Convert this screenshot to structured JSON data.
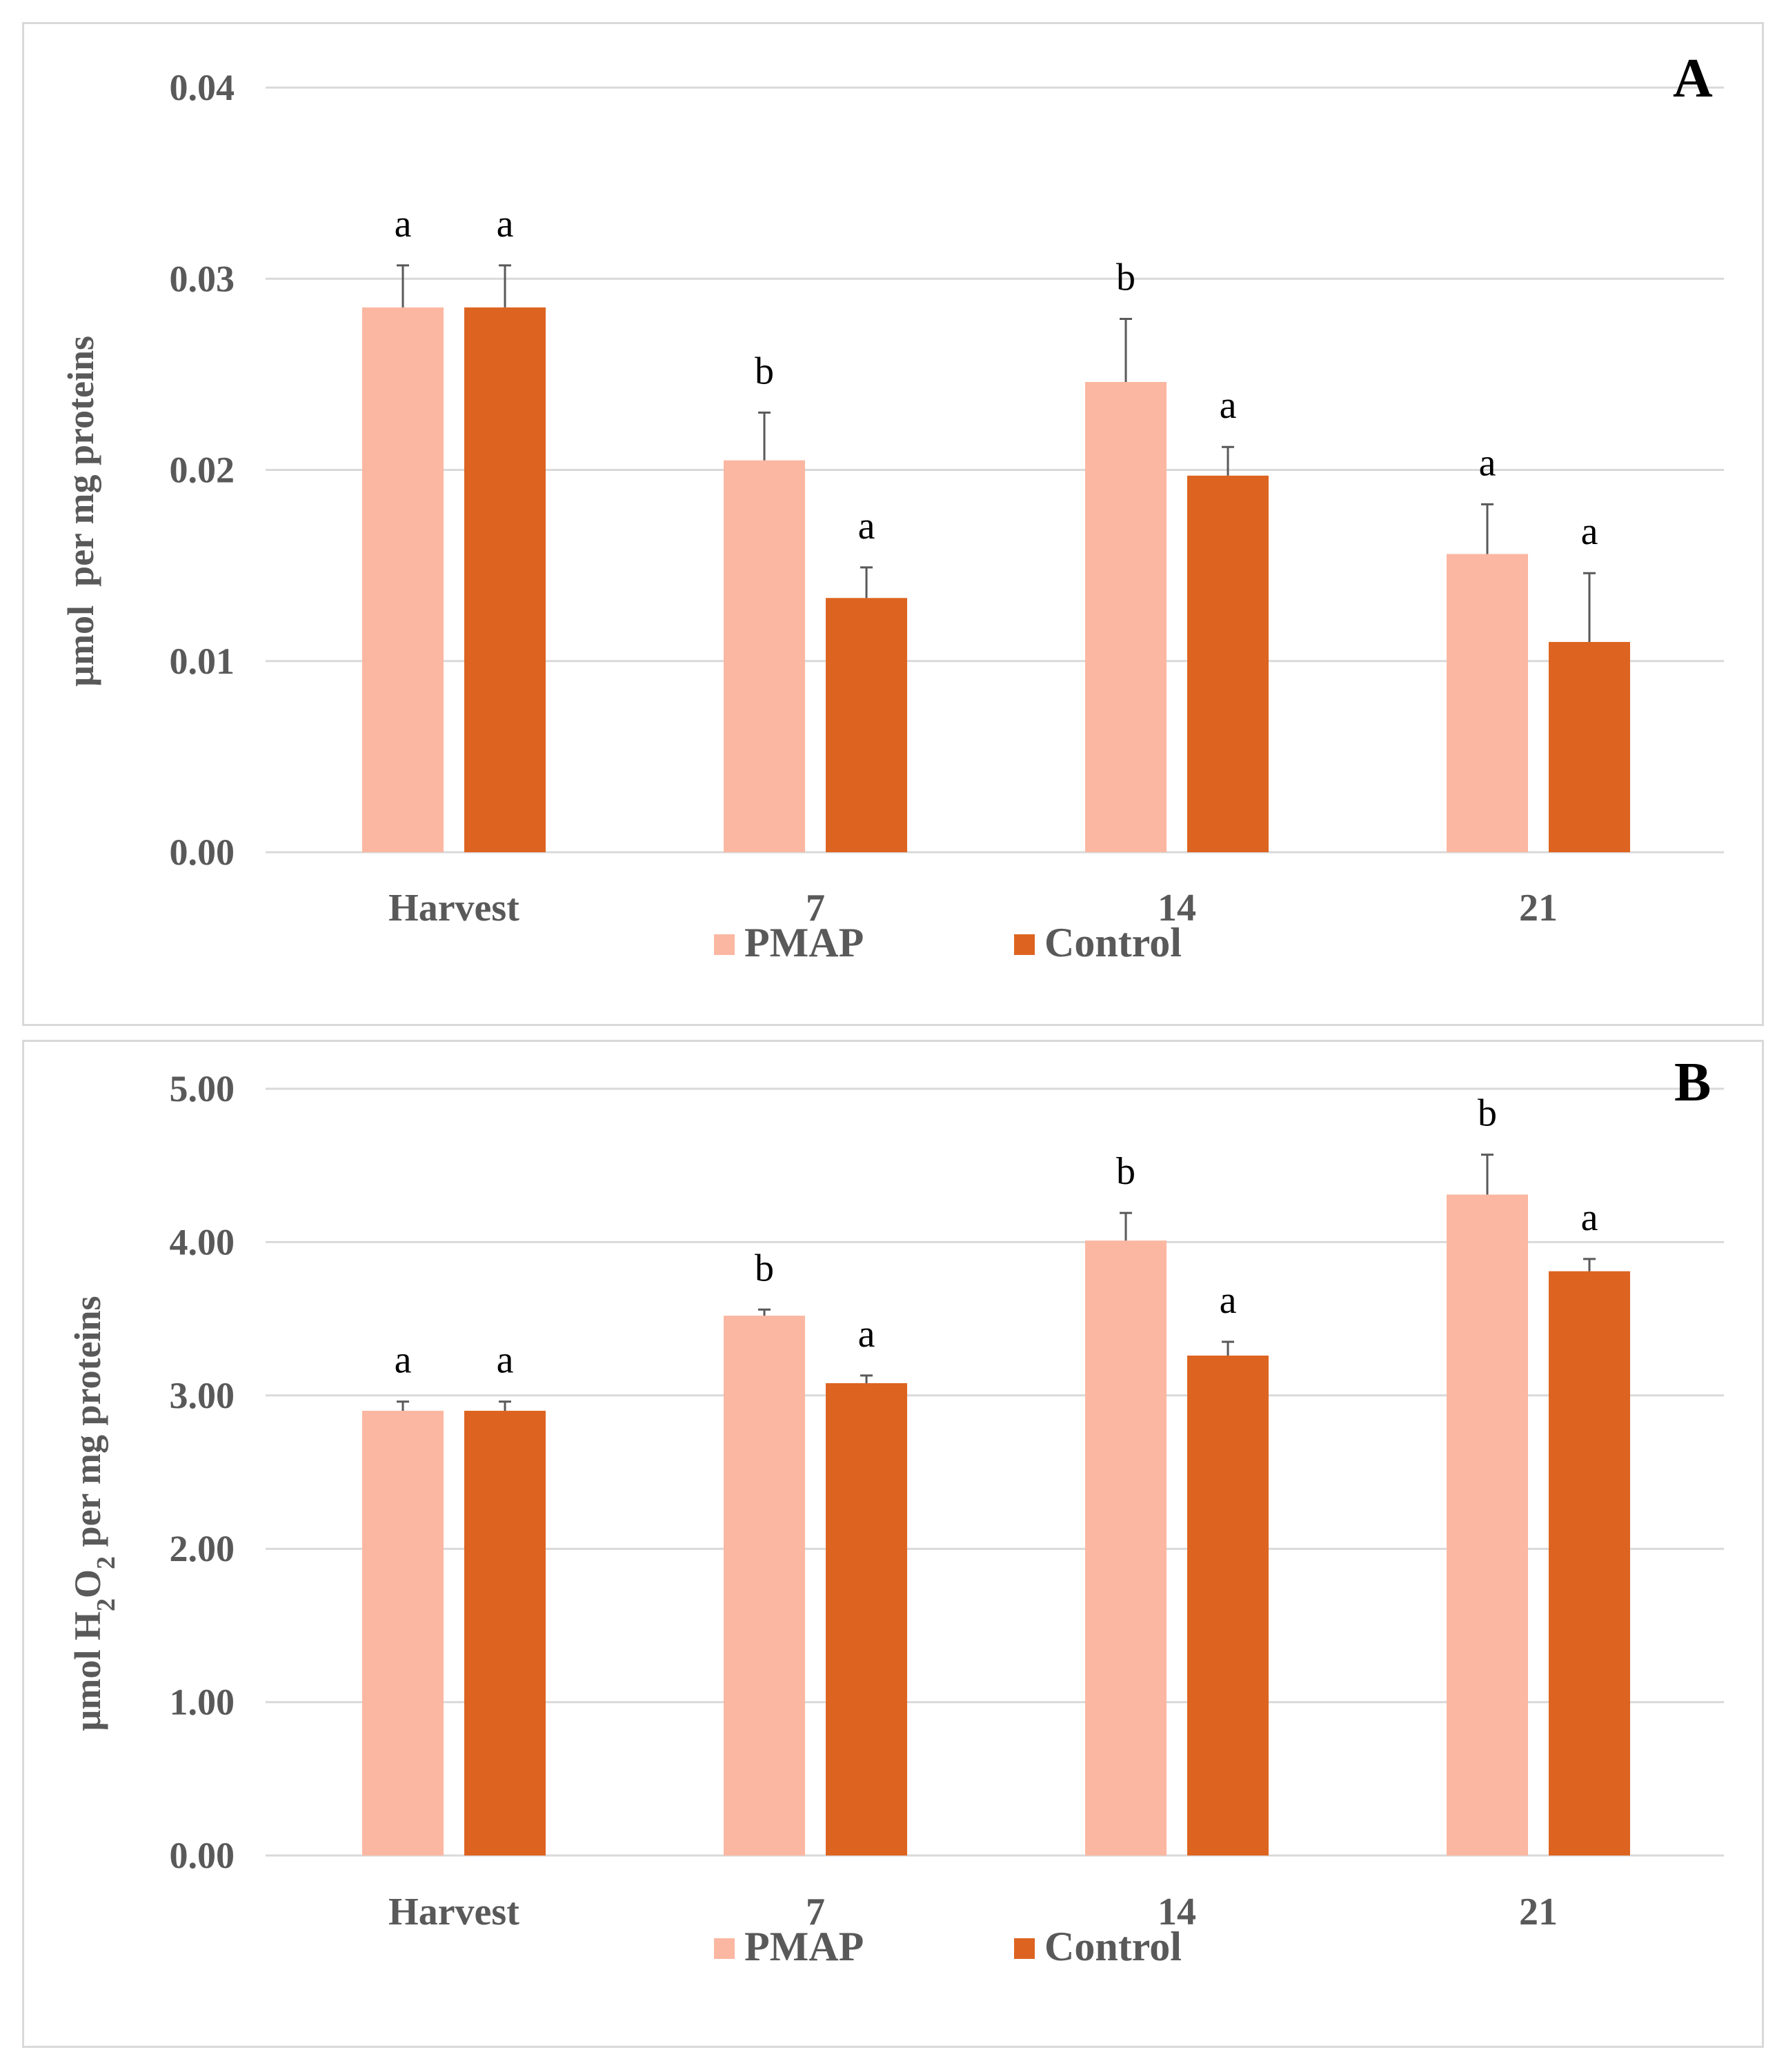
{
  "colors": {
    "pmap": "#fbb7a1",
    "control": "#dd6420",
    "grid": "#d9d9d9",
    "axis_text": "#595959",
    "error_bar": "#595959"
  },
  "chart_data": [
    {
      "type": "bar",
      "panel_label": "A",
      "categories": [
        "Harvest",
        "7",
        "14",
        "21"
      ],
      "series": [
        {
          "name": "PMAP",
          "values": [
            0.0285,
            0.0205,
            0.0246,
            0.0156
          ],
          "errors": [
            0.0022,
            0.0025,
            0.0033,
            0.0026
          ],
          "significance": [
            "a",
            "b",
            "b",
            "a"
          ]
        },
        {
          "name": "Control",
          "values": [
            0.0285,
            0.0133,
            0.0197,
            0.011
          ],
          "errors": [
            0.0022,
            0.0016,
            0.0015,
            0.0036
          ],
          "significance": [
            "a",
            "a",
            "a",
            "a"
          ]
        }
      ],
      "ylabel": "µmol  per mg proteins",
      "ylim": [
        0,
        0.04
      ],
      "yticks": [
        "0.00",
        "0.01",
        "0.02",
        "0.03",
        "0.04"
      ],
      "grid": true,
      "legend": "bottom-center"
    },
    {
      "type": "bar",
      "panel_label": "B",
      "categories": [
        "Harvest",
        "7",
        "14",
        "21"
      ],
      "series": [
        {
          "name": "PMAP",
          "values": [
            2.9,
            3.52,
            4.01,
            4.31
          ],
          "errors": [
            0.06,
            0.04,
            0.18,
            0.26
          ],
          "significance": [
            "a",
            "b",
            "b",
            "b"
          ]
        },
        {
          "name": "Control",
          "values": [
            2.9,
            3.08,
            3.26,
            3.81
          ],
          "errors": [
            0.06,
            0.05,
            0.09,
            0.08
          ],
          "significance": [
            "a",
            "a",
            "a",
            "a"
          ]
        }
      ],
      "ylabel_parts": [
        "µmol H",
        "2",
        "O",
        "2",
        " per mg proteins"
      ],
      "ylim": [
        0,
        5
      ],
      "yticks": [
        "0.00",
        "1.00",
        "2.00",
        "3.00",
        "4.00",
        "5.00"
      ],
      "grid": true,
      "legend": "bottom-center"
    }
  ]
}
